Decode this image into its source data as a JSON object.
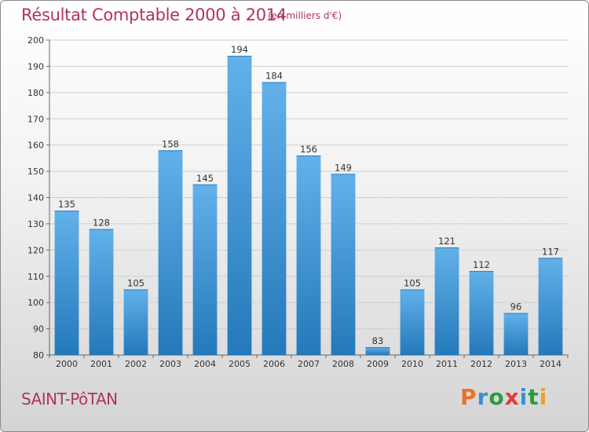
{
  "header": {
    "title": "Résultat Comptable 2000 à 2014",
    "subtitle": "(en milliers d'€)"
  },
  "footer": {
    "commune": "SAINT-PôTAN",
    "logo": "Proxiti"
  },
  "colors": {
    "title": "#b0345c",
    "bar_light": "#62b1ea",
    "bar_dark": "#2479ba",
    "logo_letters": [
      "#e8742b",
      "#3a8fd3",
      "#2c9b3c",
      "#e03a3a",
      "#3a8fd3",
      "#2c9b3c",
      "#e8a12b"
    ]
  },
  "chart_data": {
    "type": "bar",
    "title": "Résultat Comptable 2000 à 2014",
    "subtitle": "(en milliers d'€)",
    "categories": [
      "2000",
      "2001",
      "2002",
      "2003",
      "2004",
      "2005",
      "2006",
      "2007",
      "2008",
      "2009",
      "2010",
      "2011",
      "2012",
      "2013",
      "2014"
    ],
    "values": [
      135,
      128,
      105,
      158,
      145,
      194,
      184,
      156,
      149,
      83,
      105,
      121,
      112,
      96,
      117
    ],
    "ylim": [
      80,
      200
    ],
    "yticks": [
      80,
      90,
      100,
      110,
      120,
      130,
      140,
      150,
      160,
      170,
      180,
      190,
      200
    ],
    "grid": true,
    "xlabel": "",
    "ylabel": ""
  }
}
